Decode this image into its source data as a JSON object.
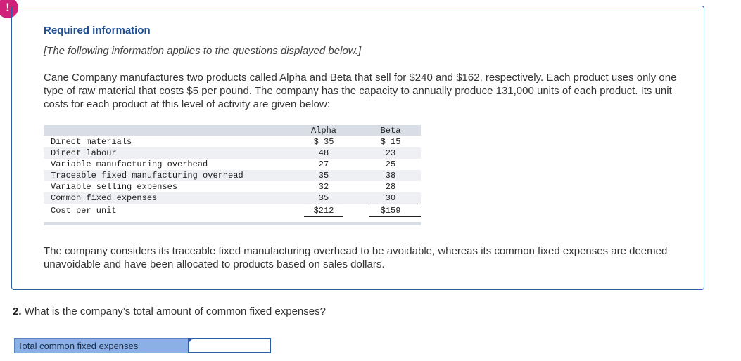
{
  "alert": {
    "glyph": "!"
  },
  "info": {
    "title": "Required information",
    "note": "[The following information applies to the questions displayed below.]",
    "intro": "Cane Company manufactures two products called Alpha and Beta that sell for $240 and $162, respectively. Each product uses only one type of raw material that costs $5 per pound. The company has the capacity to annually produce 131,000 units of each product. Its unit costs for each product at this level of activity are given below:",
    "table": {
      "headers": [
        "Alpha",
        "Beta"
      ],
      "rows": [
        {
          "label": "Direct materials",
          "alpha": "$ 35",
          "beta": "$ 15"
        },
        {
          "label": "Direct labour",
          "alpha": "48",
          "beta": "23"
        },
        {
          "label": "Variable manufacturing overhead",
          "alpha": "27",
          "beta": "25"
        },
        {
          "label": "Traceable fixed manufacturing overhead",
          "alpha": "35",
          "beta": "38"
        },
        {
          "label": "Variable selling expenses",
          "alpha": "32",
          "beta": "28"
        },
        {
          "label": "Common fixed expenses",
          "alpha": "35",
          "beta": "30"
        },
        {
          "label": "Cost per unit",
          "alpha": "$212",
          "beta": "$159"
        }
      ]
    },
    "outro": "The company considers its traceable fixed manufacturing overhead to be avoidable, whereas its common fixed expenses are deemed unavoidable and have been allocated to products based on sales dollars."
  },
  "question": {
    "number": "2.",
    "text": "What is the company’s total amount of common fixed expenses?"
  },
  "answer": {
    "label": "Total common fixed expenses",
    "value": ""
  }
}
